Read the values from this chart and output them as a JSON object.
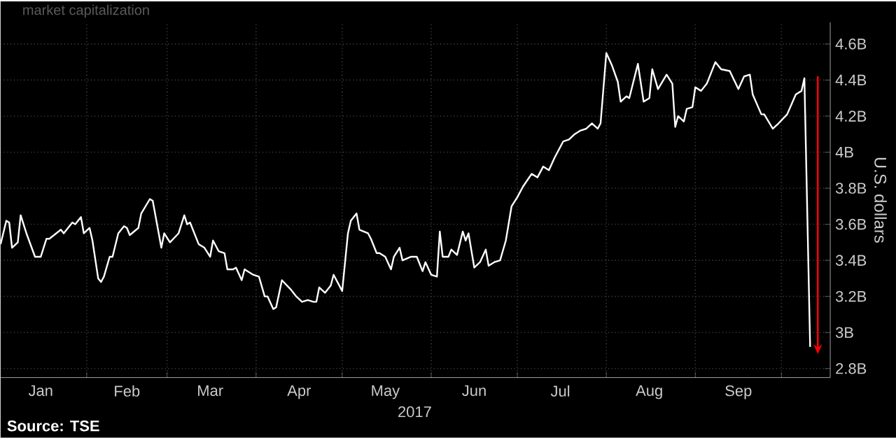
{
  "chart_data": {
    "type": "line",
    "title": "market capitalization",
    "xlabel": "2017",
    "ylabel": "U.S. dollars",
    "color": "#ffffff",
    "grid": true,
    "annotations": [
      "**Source: TSE**"
    ],
    "x": [
      "2017-01-02",
      "2017-01-04",
      "2017-01-05",
      "2017-01-06",
      "2017-01-08",
      "2017-01-09",
      "2017-01-11",
      "2017-01-14",
      "2017-01-16",
      "2017-01-18",
      "2017-01-19",
      "2017-01-23",
      "2017-01-24",
      "2017-01-27",
      "2017-01-28",
      "2017-01-30",
      "2017-01-31",
      "2017-02-02",
      "2017-02-03",
      "2017-02-05",
      "2017-02-06",
      "2017-02-07",
      "2017-02-09",
      "2017-02-10",
      "2017-02-12",
      "2017-02-14",
      "2017-02-15",
      "2017-02-16",
      "2017-02-19",
      "2017-02-20",
      "2017-02-23",
      "2017-02-24",
      "2017-02-27",
      "2017-02-28",
      "2017-03-02",
      "2017-03-05",
      "2017-03-07",
      "2017-03-08",
      "2017-03-09",
      "2017-03-12",
      "2017-03-14",
      "2017-03-16",
      "2017-03-17",
      "2017-03-19",
      "2017-03-21",
      "2017-03-22",
      "2017-03-24",
      "2017-03-25",
      "2017-03-27",
      "2017-03-28",
      "2017-03-31",
      "2017-04-02",
      "2017-04-04",
      "2017-04-05",
      "2017-04-07",
      "2017-04-08",
      "2017-04-10",
      "2017-04-13",
      "2017-04-15",
      "2017-04-17",
      "2017-04-19",
      "2017-04-21",
      "2017-04-22",
      "2017-04-23",
      "2017-04-25",
      "2017-04-27",
      "2017-04-28",
      "2017-05-01",
      "2017-05-03",
      "2017-05-04",
      "2017-05-06",
      "2017-05-07",
      "2017-05-10",
      "2017-05-11",
      "2017-05-13",
      "2017-05-14",
      "2017-05-16",
      "2017-05-18",
      "2017-05-19",
      "2017-05-21",
      "2017-05-22",
      "2017-05-25",
      "2017-05-27",
      "2017-05-29",
      "2017-05-30",
      "2017-06-01",
      "2017-06-03",
      "2017-06-04",
      "2017-06-05",
      "2017-06-07",
      "2017-06-08",
      "2017-06-10",
      "2017-06-12",
      "2017-06-13",
      "2017-06-14",
      "2017-06-16",
      "2017-06-18",
      "2017-06-20",
      "2017-06-21",
      "2017-06-23",
      "2017-06-25",
      "2017-06-27",
      "2017-06-29",
      "2017-07-01",
      "2017-07-03",
      "2017-07-06",
      "2017-07-08",
      "2017-07-10",
      "2017-07-12",
      "2017-07-14",
      "2017-07-17",
      "2017-07-19",
      "2017-07-21",
      "2017-07-23",
      "2017-07-25",
      "2017-07-27",
      "2017-07-29",
      "2017-07-30",
      "2017-08-01",
      "2017-08-03",
      "2017-08-05",
      "2017-08-06",
      "2017-08-08",
      "2017-08-09",
      "2017-08-12",
      "2017-08-14",
      "2017-08-16",
      "2017-08-17",
      "2017-08-19",
      "2017-08-22",
      "2017-08-24",
      "2017-08-25",
      "2017-08-26",
      "2017-08-28",
      "2017-08-29",
      "2017-08-31",
      "2017-09-01",
      "2017-09-03",
      "2017-09-05",
      "2017-09-08",
      "2017-09-10",
      "2017-09-13",
      "2017-09-16",
      "2017-09-18",
      "2017-09-20",
      "2017-09-21",
      "2017-09-24",
      "2017-09-25",
      "2017-09-28",
      "2017-09-30",
      "2017-10-03",
      "2017-10-06",
      "2017-10-08",
      "2017-10-09",
      "2017-10-11"
    ],
    "values": [
      3.49,
      3.62,
      3.61,
      3.47,
      3.5,
      3.65,
      3.55,
      3.42,
      3.42,
      3.52,
      3.52,
      3.57,
      3.55,
      3.61,
      3.6,
      3.64,
      3.55,
      3.58,
      3.51,
      3.3,
      3.28,
      3.31,
      3.42,
      3.42,
      3.55,
      3.59,
      3.58,
      3.54,
      3.58,
      3.66,
      3.74,
      3.73,
      3.47,
      3.55,
      3.5,
      3.55,
      3.65,
      3.6,
      3.61,
      3.49,
      3.47,
      3.42,
      3.51,
      3.45,
      3.44,
      3.35,
      3.35,
      3.36,
      3.29,
      3.35,
      3.32,
      3.31,
      3.2,
      3.2,
      3.13,
      3.14,
      3.29,
      3.24,
      3.2,
      3.17,
      3.18,
      3.17,
      3.17,
      3.25,
      3.22,
      3.26,
      3.32,
      3.23,
      3.55,
      3.62,
      3.66,
      3.57,
      3.55,
      3.52,
      3.44,
      3.44,
      3.42,
      3.35,
      3.42,
      3.47,
      3.4,
      3.42,
      3.42,
      3.34,
      3.39,
      3.32,
      3.31,
      3.56,
      3.42,
      3.42,
      3.46,
      3.43,
      3.56,
      3.51,
      3.55,
      3.36,
      3.39,
      3.46,
      3.37,
      3.39,
      3.4,
      3.51,
      3.7,
      3.75,
      3.81,
      3.88,
      3.86,
      3.92,
      3.9,
      3.97,
      4.06,
      4.07,
      4.1,
      4.12,
      4.13,
      4.16,
      4.13,
      4.16,
      4.55,
      4.48,
      4.39,
      4.28,
      4.31,
      4.3,
      4.49,
      4.28,
      4.3,
      4.46,
      4.35,
      4.43,
      4.38,
      4.14,
      4.2,
      4.17,
      4.24,
      4.25,
      4.36,
      4.34,
      4.38,
      4.5,
      4.46,
      4.45,
      4.35,
      4.42,
      4.43,
      4.32,
      4.21,
      4.21,
      4.13,
      4.16,
      4.21,
      4.32,
      4.34,
      4.41,
      2.92
    ],
    "xlim": [
      "2017-01-02",
      "2017-10-18"
    ],
    "xticks": [
      {
        "value": "2017-01-16",
        "label": "Jan"
      },
      {
        "value": "2017-02-01",
        "label": null
      },
      {
        "value": "2017-02-15",
        "label": "Feb"
      },
      {
        "value": "2017-03-01",
        "label": null
      },
      {
        "value": "2017-03-16",
        "label": "Mar"
      },
      {
        "value": "2017-04-01",
        "label": null
      },
      {
        "value": "2017-04-16",
        "label": "Apr"
      },
      {
        "value": "2017-05-01",
        "label": null
      },
      {
        "value": "2017-05-16",
        "label": "May"
      },
      {
        "value": "2017-06-01",
        "label": null
      },
      {
        "value": "2017-06-16",
        "label": "Jun"
      },
      {
        "value": "2017-07-01",
        "label": null
      },
      {
        "value": "2017-07-16",
        "label": "Jul"
      },
      {
        "value": "2017-08-01",
        "label": null
      },
      {
        "value": "2017-08-16",
        "label": "Aug"
      },
      {
        "value": "2017-09-01",
        "label": null
      },
      {
        "value": "2017-09-16",
        "label": "Sep"
      },
      {
        "value": "2017-10-01",
        "label": null
      }
    ],
    "ylim": [
      2.75,
      4.72
    ],
    "yticks": [
      {
        "value": 2.8,
        "label": "2.8B"
      },
      {
        "value": 3.0,
        "label": "3B"
      },
      {
        "value": 3.2,
        "label": "3.2B"
      },
      {
        "value": 3.4,
        "label": "3.4B"
      },
      {
        "value": 3.6,
        "label": "3.6B"
      },
      {
        "value": 3.8,
        "label": "3.8B"
      },
      {
        "value": 4.0,
        "label": "4B"
      },
      {
        "value": 4.2,
        "label": "4.2B"
      },
      {
        "value": 4.4,
        "label": "4.4B"
      },
      {
        "value": 4.6,
        "label": "4.6B"
      }
    ]
  }
}
